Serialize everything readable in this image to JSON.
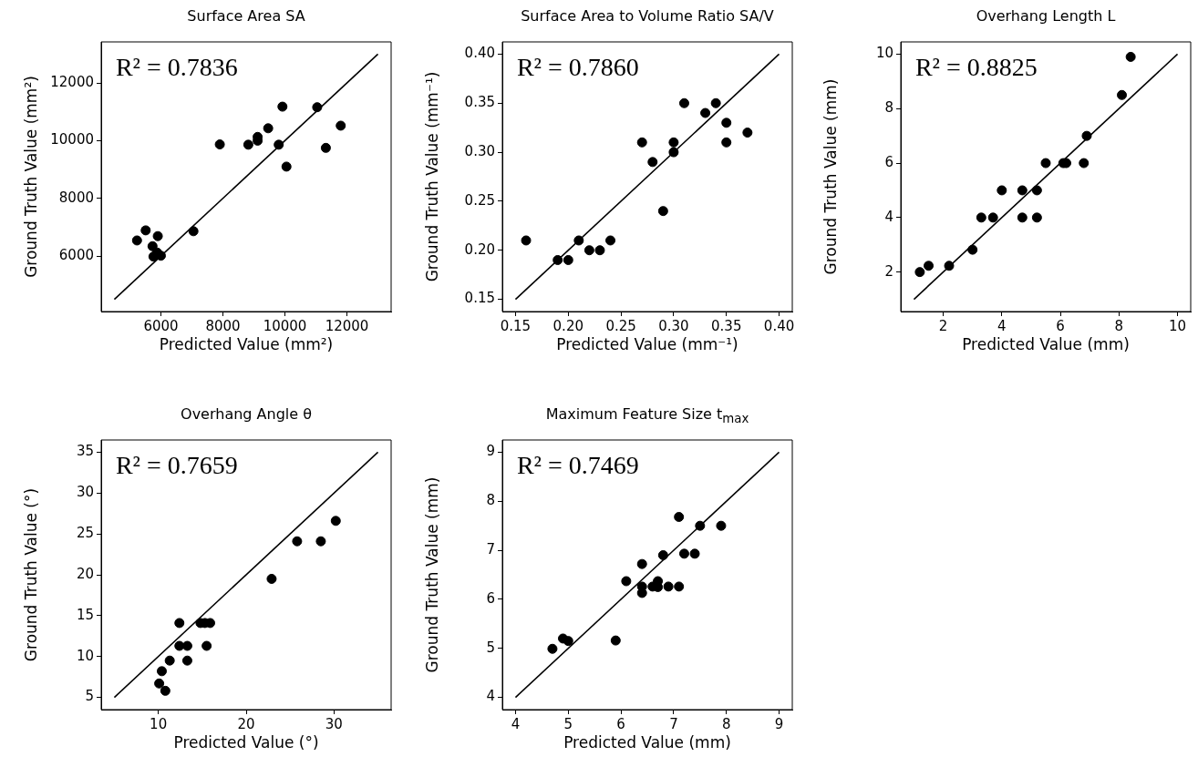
{
  "chart_data": [
    {
      "type": "scatter",
      "title": "Surface Area SA",
      "xlabel": "Predicted Value (mm²)",
      "ylabel": "Ground Truth Value (mm²)",
      "xlim": [
        4075,
        13425
      ],
      "ylim": [
        4075,
        13425
      ],
      "xticks": [
        6000,
        8000,
        10000,
        12000
      ],
      "yticks": [
        6000,
        8000,
        10000,
        12000
      ],
      "grid": false,
      "annotations": [
        "R² = 0.7836"
      ],
      "series": [
        {
          "type": "scatter",
          "marker": "circle",
          "color": "#000000",
          "x": [
            5230,
            5510,
            5900,
            5730,
            5760,
            5880,
            6000,
            7050,
            7900,
            8820,
            9120,
            9120,
            9460,
            9920,
            9800,
            10050,
            11040,
            11320,
            11800
          ],
          "values": [
            6540,
            6890,
            6690,
            6340,
            5980,
            6120,
            6010,
            6860,
            9870,
            9860,
            10130,
            10000,
            10430,
            11180,
            9860,
            9100,
            11160,
            9750,
            10520
          ]
        },
        {
          "type": "line",
          "marker": "none",
          "color": "#000000",
          "x": [
            4500,
            13000
          ],
          "values": [
            4500,
            13000
          ]
        }
      ]
    },
    {
      "type": "scatter",
      "title": "Surface Area to Volume Ratio SA/V",
      "xlabel": "Predicted Value (mm⁻¹)",
      "ylabel": "Ground Truth Value (mm⁻¹)",
      "xlim": [
        0.1375,
        0.4125
      ],
      "ylim": [
        0.1375,
        0.4125
      ],
      "xticks": [
        0.15,
        {
          "value": 0.2,
          "label": "0.20"
        },
        0.25,
        {
          "value": 0.3,
          "label": "0.30"
        },
        0.35,
        {
          "value": 0.4,
          "label": "0.40"
        }
      ],
      "yticks": [
        0.15,
        {
          "value": 0.2,
          "label": "0.20"
        },
        0.25,
        {
          "value": 0.3,
          "label": "0.30"
        },
        0.35,
        {
          "value": 0.4,
          "label": "0.40"
        }
      ],
      "grid": false,
      "annotations": [
        "R² = 0.7860"
      ],
      "series": [
        {
          "type": "scatter",
          "marker": "circle",
          "color": "#000000",
          "x": [
            0.16,
            0.19,
            0.2,
            0.21,
            0.22,
            0.23,
            0.24,
            0.27,
            0.28,
            0.29,
            0.3,
            0.3,
            0.31,
            0.33,
            0.34,
            0.35,
            0.35,
            0.37
          ],
          "values": [
            0.21,
            0.19,
            0.19,
            0.21,
            0.2,
            0.2,
            0.21,
            0.31,
            0.29,
            0.24,
            0.31,
            0.3,
            0.35,
            0.34,
            0.35,
            0.33,
            0.31,
            0.32
          ]
        },
        {
          "type": "line",
          "marker": "none",
          "color": "#000000",
          "x": [
            0.15,
            0.4
          ],
          "values": [
            0.15,
            0.4
          ]
        }
      ]
    },
    {
      "type": "scatter",
      "title": "Overhang Length L",
      "xlabel": "Predicted Value (mm)",
      "ylabel": "Ground Truth Value (mm)",
      "xlim": [
        0.55,
        10.45
      ],
      "ylim": [
        0.55,
        10.45
      ],
      "xticks": [
        2,
        4,
        6,
        8,
        10
      ],
      "yticks": [
        2,
        4,
        6,
        8,
        10
      ],
      "grid": false,
      "annotations": [
        "R² = 0.8825"
      ],
      "series": [
        {
          "type": "scatter",
          "marker": "circle",
          "color": "#000000",
          "x": [
            1.2,
            1.5,
            2.2,
            3.0,
            3.3,
            3.7,
            4.0,
            4.7,
            4.7,
            5.2,
            5.2,
            5.5,
            6.1,
            6.2,
            6.8,
            6.9,
            8.1,
            8.4
          ],
          "values": [
            2.0,
            2.23,
            2.23,
            2.82,
            4,
            4,
            5,
            5,
            4,
            5,
            4,
            6,
            6,
            6,
            6,
            7,
            8.5,
            9.9
          ]
        },
        {
          "type": "line",
          "marker": "none",
          "color": "#000000",
          "x": [
            1,
            10
          ],
          "values": [
            1,
            10
          ]
        }
      ]
    },
    {
      "type": "scatter",
      "title": "Overhang Angle θ",
      "xlabel": "Predicted Value (°)",
      "ylabel": "Ground Truth Value (°)",
      "xlim": [
        3.5,
        36.5
      ],
      "ylim": [
        3.5,
        36.5
      ],
      "xticks": [
        10,
        20,
        30
      ],
      "yticks": [
        5,
        10,
        15,
        20,
        25,
        30,
        35
      ],
      "grid": false,
      "annotations": [
        "R² = 0.7659"
      ],
      "series": [
        {
          "type": "scatter",
          "marker": "circle",
          "color": "#000000",
          "x": [
            12.4,
            14.8,
            15.3,
            15.9,
            12.4,
            13.3,
            15.5,
            11.3,
            13.3,
            10.4,
            10.1,
            10.8,
            22.9,
            25.8,
            28.5,
            30.2
          ],
          "values": [
            14.1,
            14.1,
            14.1,
            14.1,
            11.3,
            11.3,
            11.3,
            9.5,
            9.5,
            8.2,
            6.7,
            5.8,
            19.5,
            24.1,
            24.1,
            26.6
          ]
        },
        {
          "type": "line",
          "marker": "none",
          "color": "#000000",
          "x": [
            5,
            35
          ],
          "values": [
            5,
            35
          ]
        }
      ]
    },
    {
      "type": "scatter",
      "title": "Maximum Feature Size t$_{max}$",
      "xlabel": "Predicted Value (mm)",
      "ylabel": "Ground Truth Value (mm)",
      "xlim": [
        3.75,
        9.25
      ],
      "ylim": [
        3.75,
        9.25
      ],
      "xticks": [
        4,
        5,
        6,
        7,
        8,
        9
      ],
      "yticks": [
        4,
        5,
        6,
        7,
        8,
        9
      ],
      "grid": false,
      "annotations": [
        "R² = 0.7469"
      ],
      "series": [
        {
          "type": "scatter",
          "marker": "circle",
          "color": "#000000",
          "x": [
            4.7,
            4.9,
            5.0,
            5.9,
            6.1,
            6.4,
            6.4,
            6.4,
            6.6,
            6.7,
            6.7,
            6.9,
            7.1,
            6.8,
            7.1,
            7.2,
            7.4,
            7.5,
            7.9
          ],
          "values": [
            4.99,
            5.2,
            5.15,
            5.16,
            6.37,
            6.72,
            6.26,
            6.13,
            6.26,
            6.37,
            6.25,
            6.26,
            6.26,
            6.9,
            7.68,
            6.93,
            6.93,
            7.5,
            7.5
          ]
        },
        {
          "type": "line",
          "marker": "none",
          "color": "#000000",
          "x": [
            4,
            9
          ],
          "values": [
            4,
            9
          ]
        }
      ]
    }
  ]
}
